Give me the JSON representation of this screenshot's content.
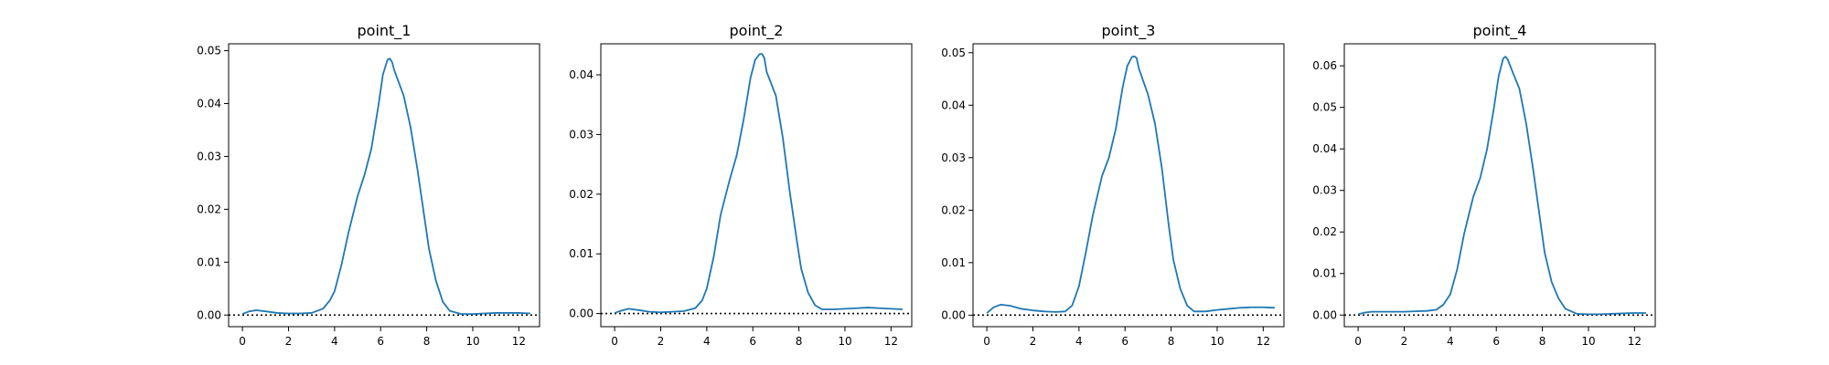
{
  "chart_data": [
    {
      "type": "line",
      "title": "point_1",
      "xlim": [
        -0.6,
        12.9
      ],
      "ylim": [
        -0.0022,
        0.0513
      ],
      "xticks": [
        "0",
        "2",
        "4",
        "6",
        "8",
        "10",
        "12"
      ],
      "yticks": [
        "0.00",
        "0.01",
        "0.02",
        "0.03",
        "0.04",
        "0.05"
      ],
      "zero_line": true,
      "series": [
        {
          "color": "#1f77b4",
          "x": [
            0.0,
            0.3,
            0.6,
            1.0,
            1.5,
            2.0,
            2.5,
            3.0,
            3.5,
            3.8,
            4.0,
            4.3,
            4.6,
            5.0,
            5.3,
            5.6,
            5.9,
            6.1,
            6.3,
            6.4,
            6.5,
            6.6,
            7.0,
            7.3,
            7.6,
            7.9,
            8.1,
            8.4,
            8.7,
            9.0,
            9.5,
            10.0,
            10.5,
            11.0,
            11.5,
            12.0,
            12.5
          ],
          "y": [
            0.0002,
            0.0007,
            0.0009,
            0.0007,
            0.0004,
            0.0003,
            0.0003,
            0.0004,
            0.0012,
            0.0028,
            0.0045,
            0.0095,
            0.0155,
            0.0225,
            0.0265,
            0.0315,
            0.0395,
            0.0455,
            0.0483,
            0.0485,
            0.0478,
            0.0462,
            0.0415,
            0.0355,
            0.0275,
            0.0185,
            0.0125,
            0.0065,
            0.0025,
            0.0008,
            0.0002,
            0.0002,
            0.0003,
            0.0004,
            0.0004,
            0.0004,
            0.0003
          ]
        }
      ]
    },
    {
      "type": "line",
      "title": "point_2",
      "xlim": [
        -0.6,
        12.9
      ],
      "ylim": [
        -0.0022,
        0.0452
      ],
      "xticks": [
        "0",
        "2",
        "4",
        "6",
        "8",
        "10",
        "12"
      ],
      "yticks": [
        "0.00",
        "0.01",
        "0.02",
        "0.03",
        "0.04"
      ],
      "zero_line": true,
      "series": [
        {
          "color": "#1f77b4",
          "x": [
            0.0,
            0.3,
            0.6,
            1.0,
            1.5,
            2.0,
            2.5,
            3.0,
            3.5,
            3.8,
            4.0,
            4.3,
            4.6,
            5.0,
            5.3,
            5.6,
            5.9,
            6.1,
            6.3,
            6.4,
            6.5,
            6.6,
            7.0,
            7.3,
            7.6,
            7.9,
            8.1,
            8.4,
            8.7,
            9.0,
            9.5,
            10.0,
            10.5,
            11.0,
            11.5,
            12.0,
            12.5
          ],
          "y": [
            0.0001,
            0.0005,
            0.0008,
            0.0006,
            0.0003,
            0.0002,
            0.0003,
            0.0004,
            0.0009,
            0.0022,
            0.0042,
            0.0095,
            0.0165,
            0.0225,
            0.0265,
            0.0325,
            0.0395,
            0.0425,
            0.0435,
            0.0435,
            0.0428,
            0.0405,
            0.0365,
            0.0295,
            0.0205,
            0.0125,
            0.0075,
            0.0035,
            0.0014,
            0.0007,
            0.0007,
            0.0008,
            0.0009,
            0.001,
            0.0009,
            0.0008,
            0.0007
          ]
        }
      ]
    },
    {
      "type": "line",
      "title": "point_3",
      "xlim": [
        -0.6,
        12.9
      ],
      "ylim": [
        -0.0022,
        0.0517
      ],
      "xticks": [
        "0",
        "2",
        "4",
        "6",
        "8",
        "10",
        "12"
      ],
      "yticks": [
        "0.00",
        "0.01",
        "0.02",
        "0.03",
        "0.04",
        "0.05"
      ],
      "zero_line": true,
      "series": [
        {
          "color": "#1f77b4",
          "x": [
            0.0,
            0.3,
            0.6,
            1.0,
            1.5,
            2.0,
            2.5,
            3.0,
            3.4,
            3.7,
            4.0,
            4.3,
            4.6,
            5.0,
            5.3,
            5.6,
            5.9,
            6.1,
            6.3,
            6.4,
            6.5,
            6.6,
            7.0,
            7.3,
            7.6,
            7.9,
            8.1,
            8.4,
            8.7,
            9.0,
            9.5,
            10.0,
            10.5,
            11.0,
            11.5,
            12.0,
            12.5
          ],
          "y": [
            0.0004,
            0.0015,
            0.002,
            0.0018,
            0.0012,
            0.0009,
            0.0007,
            0.0006,
            0.0007,
            0.0018,
            0.0055,
            0.012,
            0.019,
            0.0265,
            0.03,
            0.0355,
            0.0435,
            0.0475,
            0.0492,
            0.0493,
            0.049,
            0.047,
            0.042,
            0.0365,
            0.028,
            0.017,
            0.0105,
            0.005,
            0.0018,
            0.0007,
            0.0007,
            0.001,
            0.0012,
            0.0014,
            0.0015,
            0.0015,
            0.0014
          ]
        }
      ]
    },
    {
      "type": "line",
      "title": "point_4",
      "xlim": [
        -0.6,
        12.9
      ],
      "ylim": [
        -0.0028,
        0.0653
      ],
      "xticks": [
        "0",
        "2",
        "4",
        "6",
        "8",
        "10",
        "12"
      ],
      "yticks": [
        "0.00",
        "0.01",
        "0.02",
        "0.03",
        "0.04",
        "0.05",
        "0.06"
      ],
      "zero_line": true,
      "series": [
        {
          "color": "#1f77b4",
          "x": [
            0.0,
            0.3,
            0.6,
            1.0,
            1.5,
            2.0,
            2.5,
            3.0,
            3.4,
            3.7,
            4.0,
            4.3,
            4.6,
            5.0,
            5.3,
            5.6,
            5.9,
            6.1,
            6.3,
            6.4,
            6.5,
            6.6,
            7.0,
            7.3,
            7.6,
            7.9,
            8.1,
            8.4,
            8.7,
            9.0,
            9.5,
            10.0,
            10.5,
            11.0,
            11.5,
            12.0,
            12.5
          ],
          "y": [
            0.0002,
            0.0006,
            0.0008,
            0.0008,
            0.0008,
            0.0008,
            0.0009,
            0.001,
            0.0013,
            0.0025,
            0.005,
            0.011,
            0.0195,
            0.0285,
            0.033,
            0.04,
            0.05,
            0.0575,
            0.0618,
            0.0622,
            0.0615,
            0.06,
            0.0545,
            0.046,
            0.035,
            0.023,
            0.015,
            0.008,
            0.004,
            0.0015,
            0.0003,
            0.0002,
            0.0002,
            0.0003,
            0.0004,
            0.0005,
            0.0005
          ]
        }
      ]
    }
  ]
}
